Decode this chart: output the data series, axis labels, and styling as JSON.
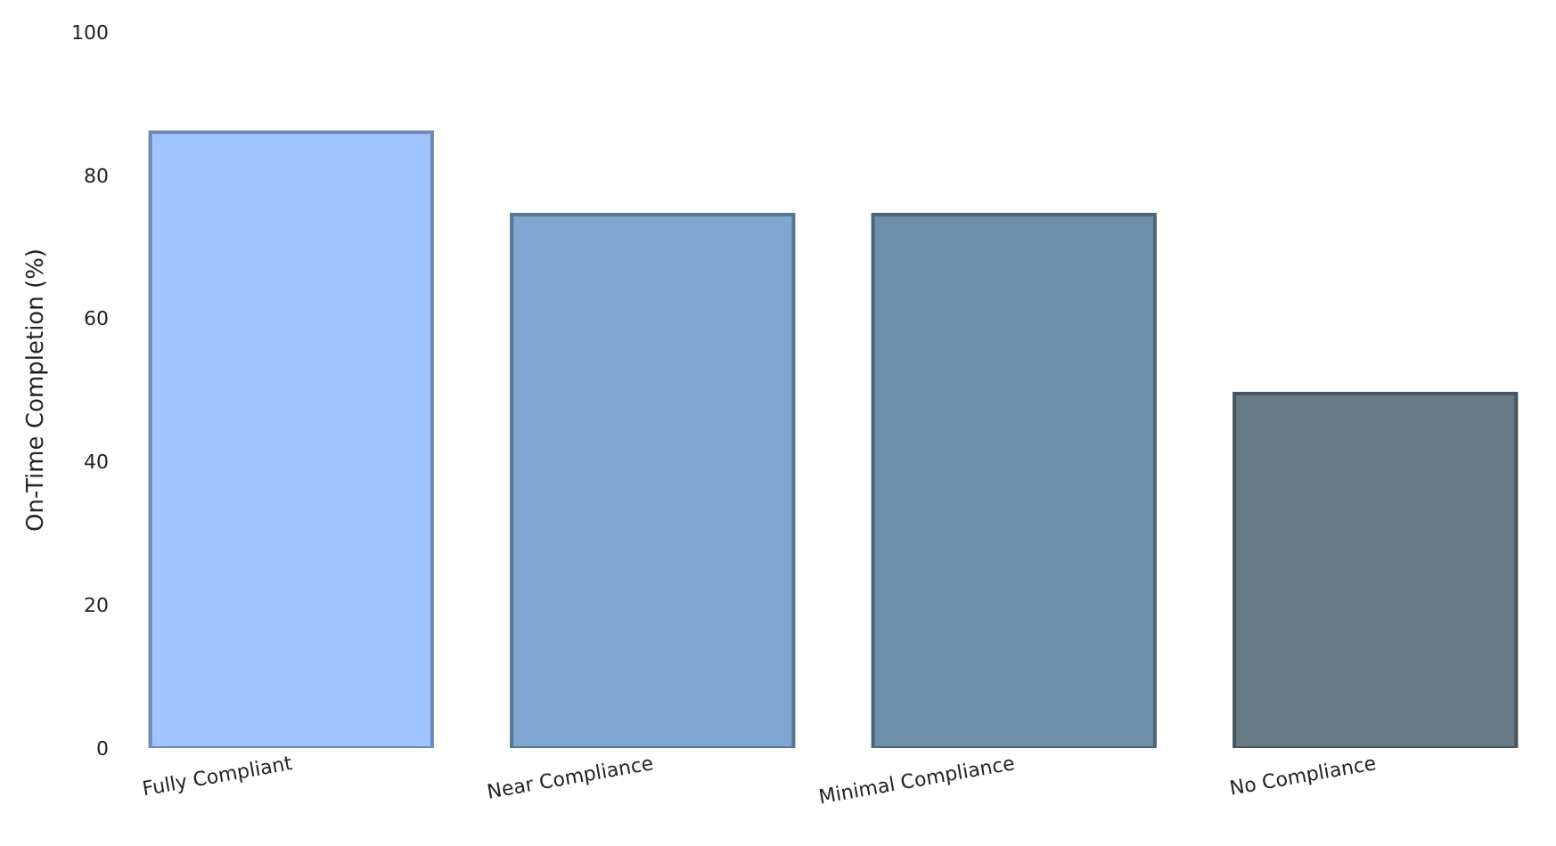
{
  "chart_data": {
    "type": "bar",
    "ylabel": "On-Time Completion (%)",
    "categories": [
      "Fully Compliant",
      "Near Compliance",
      "Minimal Compliance",
      "No Compliance"
    ],
    "values": [
      86,
      74.5,
      74.5,
      49.5
    ],
    "colors": [
      "#a0c4ff",
      "#80a6d2",
      "#6d8fa8",
      "#687a86"
    ],
    "ylim": [
      0,
      100
    ],
    "yticks": [
      0,
      20,
      40,
      60,
      80,
      100
    ]
  }
}
